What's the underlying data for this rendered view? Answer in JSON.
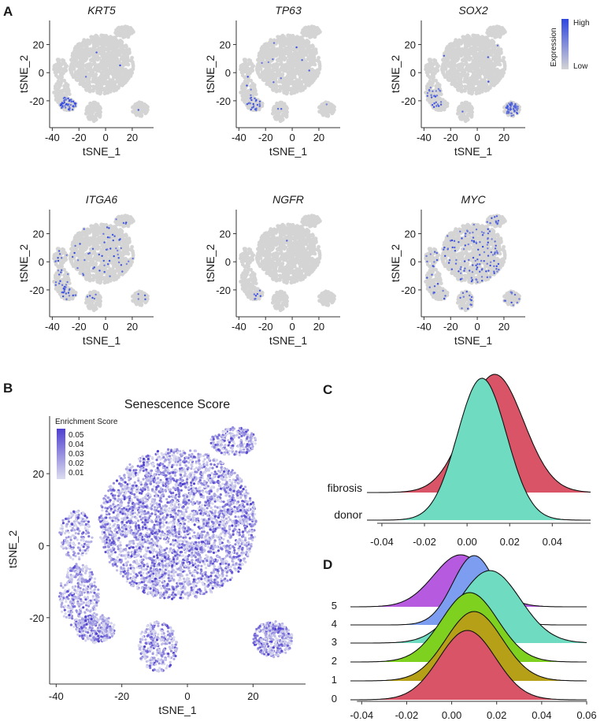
{
  "panel_labels": {
    "a": "A",
    "b": "B",
    "c": "C",
    "d": "D"
  },
  "colors": {
    "map_low": "#d4d4d4",
    "map_high": "#2f46e0",
    "score_low": "#dcdcef",
    "score_high": "#4f3fd0",
    "fibrosis": "#d85466",
    "donor": "#6fdcc1",
    "cluster_5": "#b65be0",
    "cluster_4": "#7d9ef0",
    "cluster_3": "#6fdcc1",
    "cluster_2": "#7fd11f",
    "cluster_1": "#b5a018",
    "cluster_0": "#d85466"
  },
  "chart_data": [
    {
      "id": "A",
      "type": "scatter",
      "kind": "tsne_feature_plots",
      "xlabel": "tSNE_1",
      "ylabel": "tSNE_2",
      "xticks": [
        -40,
        -20,
        0,
        20
      ],
      "yticks": [
        -20,
        0,
        20
      ],
      "xlim": [
        -42,
        36
      ],
      "ylim": [
        -38,
        36
      ],
      "legend": {
        "title": "Expression",
        "high": "High",
        "low": "Low",
        "position": "right"
      },
      "genes": [
        {
          "name": "KRT5",
          "hotspots": [
            {
              "x": -28,
              "y": -22,
              "r": 6,
              "p": 0.55
            }
          ],
          "background_rate": 0.004
        },
        {
          "name": "TP63",
          "hotspots": [
            {
              "x": -28,
              "y": -22,
              "r": 6,
              "p": 0.35
            }
          ],
          "background_rate": 0.012
        },
        {
          "name": "SOX2",
          "hotspots": [
            {
              "x": -33,
              "y": -18,
              "r": 8,
              "p": 0.25
            },
            {
              "x": 26,
              "y": -26,
              "r": 5,
              "p": 0.6
            }
          ],
          "background_rate": 0.004
        },
        {
          "name": "ITGA6",
          "hotspots": [
            {
              "x": -28,
              "y": -22,
              "r": 6,
              "p": 0.2
            }
          ],
          "background_rate": 0.06
        },
        {
          "name": "NGFR",
          "hotspots": [
            {
              "x": -28,
              "y": -22,
              "r": 6,
              "p": 0.08
            }
          ],
          "background_rate": 0.003
        },
        {
          "name": "MYC",
          "hotspots": [
            {
              "x": 0,
              "y": 0,
              "r": 30,
              "p": 0.12
            }
          ],
          "background_rate": 0.1
        }
      ]
    },
    {
      "id": "B",
      "type": "scatter",
      "kind": "tsne_score_plot",
      "title": "Senescence Score",
      "xlabel": "tSNE_1",
      "ylabel": "tSNE_2",
      "xticks": [
        -40,
        -20,
        0,
        20
      ],
      "yticks": [
        -20,
        0,
        20
      ],
      "xlim": [
        -42,
        36
      ],
      "ylim": [
        -38,
        36
      ],
      "legend": {
        "title": "Enrichment Score",
        "entries": [
          "0.05",
          "0.04",
          "0.03",
          "0.02",
          "0.01"
        ],
        "position": "top-left"
      }
    },
    {
      "id": "C",
      "type": "area",
      "kind": "ridgeline_density",
      "xticks": [
        -0.04,
        -0.02,
        0.0,
        0.02,
        0.04
      ],
      "xtick_labels": [
        "-0.04",
        "-0.02",
        "0.00",
        "0.02",
        "0.04"
      ],
      "xlim": [
        -0.047,
        0.058
      ],
      "series": [
        {
          "name": "donor",
          "mean": 0.007,
          "sd": 0.0115,
          "scale": 1.2
        },
        {
          "name": "fibrosis",
          "mean": 0.013,
          "sd": 0.0135,
          "scale": 1.0
        }
      ]
    },
    {
      "id": "D",
      "type": "area",
      "kind": "ridgeline_density",
      "xticks": [
        -0.04,
        -0.02,
        0.0,
        0.02,
        0.04,
        0.06
      ],
      "xtick_labels": [
        "-0.04",
        "-0.02",
        "0.00",
        "0.02",
        "0.04",
        "0.06"
      ],
      "xlim": [
        -0.045,
        0.06
      ],
      "series": [
        {
          "name": "0",
          "mean": 0.007,
          "sd": 0.0125,
          "scale": 1.0
        },
        {
          "name": "1",
          "mean": 0.01,
          "sd": 0.0125,
          "scale": 1.0
        },
        {
          "name": "2",
          "mean": 0.008,
          "sd": 0.0125,
          "scale": 1.0
        },
        {
          "name": "3",
          "mean": 0.017,
          "sd": 0.0135,
          "scale": 1.0
        },
        {
          "name": "4",
          "mean": 0.01,
          "sd": 0.0095,
          "scale": 1.0
        },
        {
          "name": "5",
          "mean": 0.004,
          "sd": 0.012,
          "scale": 1.0
        }
      ]
    }
  ]
}
